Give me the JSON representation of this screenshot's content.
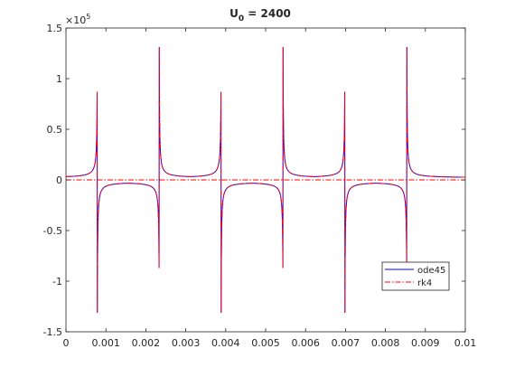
{
  "chart_data": {
    "type": "line",
    "title_main": "U",
    "title_sub": "0",
    "title_rest": " = 2400",
    "y_exponent_base": "×10",
    "y_exponent_power": "5",
    "xlim": [
      0,
      0.01
    ],
    "ylim": [
      -1.5,
      1.5
    ],
    "y_scale_factor": 100000,
    "xticks": [
      0,
      0.001,
      0.002,
      0.003,
      0.004,
      0.005,
      0.006,
      0.007,
      0.008,
      0.009,
      0.01
    ],
    "xtick_labels": [
      "0",
      "0.001",
      "0.002",
      "0.003",
      "0.004",
      "0.005",
      "0.006",
      "0.007",
      "0.008",
      "0.009",
      "0.01"
    ],
    "yticks": [
      -1.5,
      -1,
      -0.5,
      0,
      0.5,
      1,
      1.5
    ],
    "ytick_labels": [
      "-1.5",
      "-1",
      "-0.5",
      "0",
      "0.5",
      "1",
      "1.5"
    ],
    "grid": false,
    "legend_position": "bottom-right",
    "spike_times": [
      0.000786,
      0.002336,
      0.003886,
      0.005436,
      0.006986,
      0.008536
    ],
    "spike_directions": [
      1,
      -1,
      1,
      -1,
      1,
      -1
    ],
    "peak_value": 1.36,
    "baseline_value": 0.02,
    "series": [
      {
        "name": "ode45",
        "color": "#0000ff",
        "style": "solid"
      },
      {
        "name": "rk4",
        "color": "#ff0000",
        "style": "dashdot"
      }
    ]
  }
}
